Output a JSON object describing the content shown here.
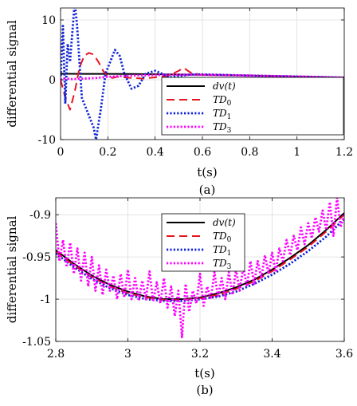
{
  "chart_data": [
    {
      "type": "line",
      "panel_label": "(a)",
      "xlabel": "t(s)",
      "ylabel": "differential signal",
      "xlim": [
        0,
        1.2
      ],
      "ylim": [
        -10,
        12
      ],
      "xticks": [
        0,
        0.2,
        0.4,
        0.6,
        0.8,
        1,
        1.2
      ],
      "xtick_labels": [
        "0",
        "0.2",
        "0.4",
        "0.6",
        "0.8",
        "1",
        "1.2"
      ],
      "yticks": [
        -10,
        0,
        10
      ],
      "ytick_labels": [
        "-10",
        "0",
        "10"
      ],
      "grid": true,
      "legend_position": "bottom-right",
      "series": [
        {
          "name": "dv(t)",
          "color": "#000000",
          "style": "solid",
          "x": [
            0,
            0.1,
            0.2,
            0.3,
            0.4,
            0.5,
            0.6,
            0.7,
            0.8,
            0.9,
            1.0,
            1.1,
            1.2
          ],
          "y": [
            1.0,
            0.99,
            0.98,
            0.96,
            0.92,
            0.88,
            0.83,
            0.77,
            0.7,
            0.62,
            0.54,
            0.45,
            0.36
          ]
        },
        {
          "name": "TD0",
          "color": "#e8141e",
          "style": "dashed",
          "x": [
            0,
            0.02,
            0.04,
            0.06,
            0.08,
            0.1,
            0.12,
            0.14,
            0.16,
            0.18,
            0.2,
            0.22,
            0.24,
            0.27,
            0.3,
            0.35,
            0.4,
            0.45,
            0.5,
            0.52,
            0.55,
            0.6,
            0.7,
            0.8,
            1.0,
            1.2
          ],
          "y": [
            0,
            -3,
            -5,
            -2,
            2,
            4,
            4.5,
            4.2,
            3,
            1.5,
            0.5,
            0.3,
            0.5,
            0.4,
            0.3,
            0.2,
            0.4,
            0.6,
            1.5,
            2,
            1.2,
            0.8,
            0.75,
            0.7,
            0.55,
            0.37
          ]
        },
        {
          "name": "TD1",
          "color": "#1024d8",
          "style": "dotted",
          "x": [
            0,
            0.01,
            0.02,
            0.03,
            0.04,
            0.05,
            0.06,
            0.07,
            0.08,
            0.09,
            0.1,
            0.12,
            0.14,
            0.15,
            0.17,
            0.19,
            0.21,
            0.23,
            0.25,
            0.27,
            0.3,
            0.33,
            0.36,
            0.4,
            0.43,
            0.46,
            0.5,
            0.55,
            0.6,
            0.7,
            0.8,
            0.9,
            1.0,
            1.1,
            1.2
          ],
          "y": [
            0,
            9,
            -4,
            6,
            3,
            8,
            13,
            9,
            3,
            -3,
            -4,
            -6,
            -8,
            -10,
            -5,
            1,
            3,
            5,
            4,
            1,
            -1.5,
            -1,
            1,
            1.5,
            1,
            0.4,
            0.6,
            0.9,
            0.9,
            0.8,
            0.7,
            0.62,
            0.54,
            0.45,
            0.36
          ]
        },
        {
          "name": "TD3",
          "color": "#ff00ff",
          "style": "dotted",
          "x": [
            0,
            0.02,
            0.05,
            0.1,
            0.15,
            0.2,
            0.25,
            0.3,
            0.35,
            0.4,
            0.5,
            0.6,
            0.7,
            0.8,
            0.9,
            1.0,
            1.1,
            1.2
          ],
          "y": [
            0,
            0.2,
            0.1,
            0.2,
            0.3,
            0.5,
            0.6,
            0.7,
            0.75,
            0.8,
            0.85,
            0.83,
            0.77,
            0.7,
            0.62,
            0.54,
            0.45,
            0.36
          ]
        }
      ]
    },
    {
      "type": "line",
      "panel_label": "(b)",
      "xlabel": "t(s)",
      "ylabel": "differential signal",
      "xlim": [
        2.8,
        3.6
      ],
      "ylim": [
        -1.05,
        -0.88
      ],
      "xticks": [
        2.8,
        3,
        3.2,
        3.4,
        3.6
      ],
      "xtick_labels": [
        "2.8",
        "3",
        "3.2",
        "3.4",
        "3.6"
      ],
      "yticks": [
        -1.05,
        -1,
        -0.95,
        -0.9
      ],
      "ytick_labels": [
        "-1.05",
        "-1",
        "-0.95",
        "-0.9"
      ],
      "grid": true,
      "legend_position": "top-center",
      "series": [
        {
          "name": "dv(t)",
          "color": "#000000",
          "style": "solid",
          "x": [
            2.8,
            2.85,
            2.9,
            2.95,
            3.0,
            3.05,
            3.1,
            3.15,
            3.2,
            3.25,
            3.3,
            3.35,
            3.4,
            3.45,
            3.5,
            3.55,
            3.6
          ],
          "y": [
            -0.942,
            -0.958,
            -0.972,
            -0.983,
            -0.991,
            -0.997,
            -1.0,
            -1.0,
            -0.998,
            -0.993,
            -0.986,
            -0.977,
            -0.965,
            -0.951,
            -0.936,
            -0.918,
            -0.898
          ]
        },
        {
          "name": "TD0",
          "color": "#e8141e",
          "style": "dashed",
          "x": [
            2.8,
            2.85,
            2.9,
            2.95,
            3.0,
            3.05,
            3.1,
            3.15,
            3.2,
            3.25,
            3.3,
            3.35,
            3.4,
            3.45,
            3.5,
            3.55,
            3.6
          ],
          "y": [
            -0.944,
            -0.96,
            -0.974,
            -0.985,
            -0.993,
            -0.998,
            -1.001,
            -1.001,
            -0.999,
            -0.995,
            -0.988,
            -0.979,
            -0.967,
            -0.953,
            -0.938,
            -0.92,
            -0.9
          ]
        },
        {
          "name": "TD1",
          "color": "#1024d8",
          "style": "dotted",
          "x": [
            2.8,
            2.85,
            2.9,
            2.95,
            3.0,
            3.05,
            3.1,
            3.15,
            3.2,
            3.25,
            3.3,
            3.35,
            3.4,
            3.45,
            3.5,
            3.55,
            3.6
          ],
          "y": [
            -0.946,
            -0.962,
            -0.976,
            -0.987,
            -0.995,
            -1.0,
            -1.002,
            -1.002,
            -1.0,
            -0.997,
            -0.991,
            -0.982,
            -0.971,
            -0.958,
            -0.943,
            -0.926,
            -0.905
          ]
        },
        {
          "name": "TD3",
          "color": "#ff00ff",
          "style": "dotted",
          "x": [
            2.8,
            2.81,
            2.82,
            2.83,
            2.84,
            2.85,
            2.86,
            2.87,
            2.88,
            2.89,
            2.9,
            2.91,
            2.92,
            2.93,
            2.94,
            2.95,
            2.96,
            2.97,
            2.98,
            2.99,
            3.0,
            3.01,
            3.02,
            3.03,
            3.04,
            3.05,
            3.06,
            3.07,
            3.08,
            3.09,
            3.1,
            3.11,
            3.12,
            3.13,
            3.14,
            3.15,
            3.16,
            3.17,
            3.18,
            3.19,
            3.2,
            3.21,
            3.22,
            3.23,
            3.24,
            3.25,
            3.26,
            3.27,
            3.28,
            3.29,
            3.3,
            3.31,
            3.32,
            3.33,
            3.34,
            3.35,
            3.36,
            3.37,
            3.38,
            3.39,
            3.4,
            3.41,
            3.42,
            3.43,
            3.44,
            3.45,
            3.46,
            3.47,
            3.48,
            3.49,
            3.5,
            3.51,
            3.52,
            3.53,
            3.54,
            3.55,
            3.56,
            3.57,
            3.58,
            3.59,
            3.6
          ],
          "y": [
            -0.91,
            -0.955,
            -0.93,
            -0.962,
            -0.933,
            -0.97,
            -0.94,
            -0.978,
            -0.945,
            -0.985,
            -0.95,
            -0.99,
            -0.96,
            -0.995,
            -0.965,
            -0.99,
            -0.972,
            -1.0,
            -0.97,
            -0.998,
            -0.965,
            -1.0,
            -0.975,
            -1.002,
            -0.978,
            -1.0,
            -0.967,
            -1.003,
            -0.98,
            -1.005,
            -0.975,
            -1.01,
            -0.985,
            -1.02,
            -0.99,
            -1.045,
            -0.982,
            -1.015,
            -0.99,
            -1.005,
            -0.97,
            -1.008,
            -0.985,
            -1.0,
            -0.968,
            -0.998,
            -0.975,
            -1.0,
            -0.968,
            -0.995,
            -0.965,
            -0.99,
            -0.962,
            -0.985,
            -0.955,
            -0.982,
            -0.955,
            -0.975,
            -0.948,
            -0.97,
            -0.945,
            -0.968,
            -0.94,
            -0.955,
            -0.93,
            -0.948,
            -0.925,
            -0.942,
            -0.915,
            -0.935,
            -0.91,
            -0.928,
            -0.903,
            -0.92,
            -0.895,
            -0.918,
            -0.885,
            -0.925,
            -0.88,
            -0.915,
            -0.9
          ]
        }
      ]
    }
  ]
}
